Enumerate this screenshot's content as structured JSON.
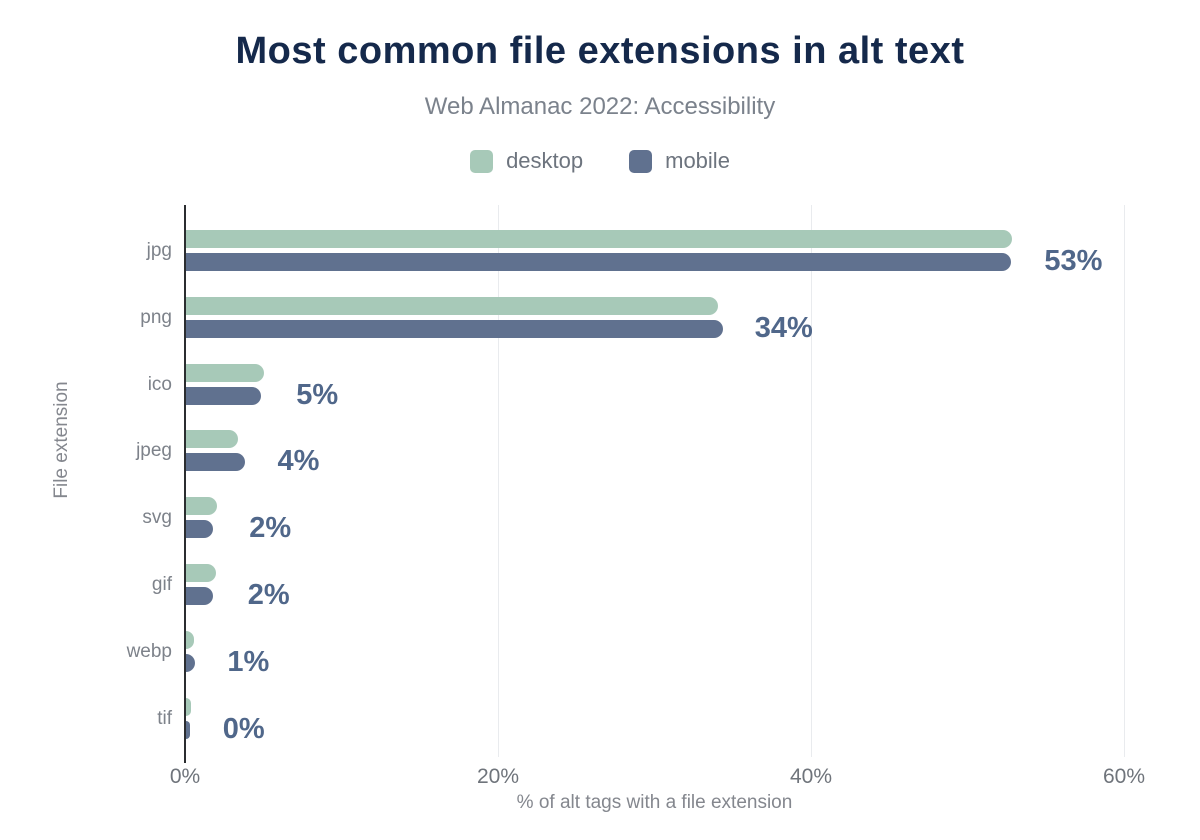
{
  "header": {
    "title": "Most common file extensions in alt text",
    "subtitle": "Web Almanac 2022: Accessibility"
  },
  "legend": [
    {
      "label": "desktop",
      "color": "#a7c9b8"
    },
    {
      "label": "mobile",
      "color": "#60718f"
    }
  ],
  "chart_data": {
    "type": "bar",
    "orientation": "horizontal",
    "title": "Most common file extensions in alt text",
    "subtitle": "Web Almanac 2022: Accessibility",
    "categories": [
      "jpg",
      "png",
      "ico",
      "jpeg",
      "svg",
      "gif",
      "webp",
      "tif"
    ],
    "series": [
      {
        "name": "desktop",
        "color": "#a7c9b8",
        "values": [
          52.8,
          34.0,
          5.0,
          3.3,
          2.0,
          1.9,
          0.5,
          0.3
        ]
      },
      {
        "name": "mobile",
        "color": "#60718f",
        "values": [
          52.7,
          34.3,
          4.8,
          3.8,
          1.7,
          1.7,
          0.6,
          0.25
        ]
      }
    ],
    "value_labels": [
      "53%",
      "34%",
      "5%",
      "4%",
      "2%",
      "2%",
      "1%",
      "0%"
    ],
    "xlabel": "% of alt tags with a file extension",
    "ylabel": "File extension",
    "xlim": [
      0,
      60
    ],
    "xticks": [
      0,
      20,
      40,
      60
    ],
    "xtick_labels": [
      "0%",
      "20%",
      "40%",
      "60%"
    ],
    "grid": "vertical",
    "legend_position": "top",
    "colors": {
      "title": "#15294b",
      "subtitle": "#7b828c",
      "value_label": "#50678a",
      "axis_line": "#2b2d30",
      "gridline": "#e9ebee",
      "tick_label": "#6f747b"
    }
  }
}
